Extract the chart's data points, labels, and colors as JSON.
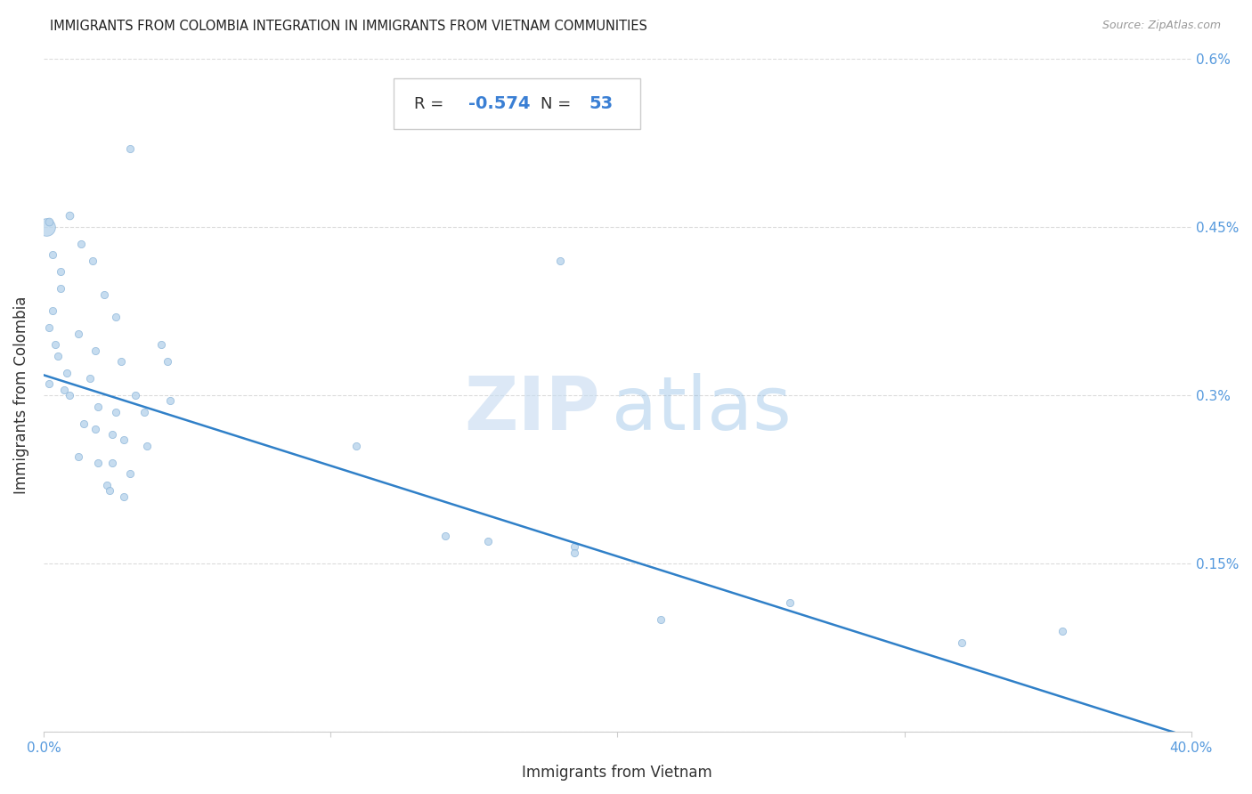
{
  "title": "IMMIGRANTS FROM COLOMBIA INTEGRATION IN IMMIGRANTS FROM VIETNAM COMMUNITIES",
  "source": "Source: ZipAtlas.com",
  "xlabel": "Immigrants from Vietnam",
  "ylabel": "Immigrants from Colombia",
  "R": -0.574,
  "N": 53,
  "xlim": [
    0.0,
    0.4
  ],
  "ylim": [
    0.0,
    0.6
  ],
  "xticks": [
    0.0,
    0.1,
    0.2,
    0.3,
    0.4
  ],
  "xtick_labels": [
    "0.0%",
    "",
    "",
    "",
    "40.0%"
  ],
  "yticks": [
    0.0,
    0.15,
    0.3,
    0.45,
    0.6
  ],
  "right_ytick_labels": [
    "",
    "0.15%",
    "0.3%",
    "0.45%",
    "0.6%"
  ],
  "scatter_color": "#b8d4ec",
  "scatter_edge_color": "#8ab4d8",
  "line_color": "#3080c8",
  "line_start_x": 0.0,
  "line_start_y": 0.318,
  "line_end_x": 0.4,
  "line_end_y": -0.005,
  "watermark_zip_color": "#c5daf0",
  "watermark_atlas_color": "#7ab0e0",
  "title_color": "#222222",
  "source_color": "#999999",
  "axis_label_color": "#333333",
  "tick_label_color": "#5599dd",
  "grid_color": "#cccccc",
  "stats_box_R_label_color": "#333333",
  "stats_box_R_value_color": "#3a7fd4",
  "stats_box_N_label_color": "#333333",
  "stats_box_N_value_color": "#3a7fd4",
  "points": [
    [
      0.001,
      0.505
    ],
    [
      0.009,
      0.46
    ],
    [
      0.001,
      0.455
    ],
    [
      0.013,
      0.435
    ],
    [
      0.003,
      0.425
    ],
    [
      0.017,
      0.42
    ],
    [
      0.006,
      0.41
    ],
    [
      0.006,
      0.395
    ],
    [
      0.021,
      0.39
    ],
    [
      0.003,
      0.375
    ],
    [
      0.025,
      0.37
    ],
    [
      0.002,
      0.36
    ],
    [
      0.012,
      0.355
    ],
    [
      0.004,
      0.345
    ],
    [
      0.041,
      0.345
    ],
    [
      0.018,
      0.34
    ],
    [
      0.005,
      0.335
    ],
    [
      0.027,
      0.33
    ],
    [
      0.043,
      0.33
    ],
    [
      0.008,
      0.32
    ],
    [
      0.016,
      0.315
    ],
    [
      0.002,
      0.31
    ],
    [
      0.032,
      0.3
    ],
    [
      0.044,
      0.295
    ],
    [
      0.019,
      0.29
    ],
    [
      0.025,
      0.285
    ],
    [
      0.035,
      0.285
    ],
    [
      0.0,
      0.32
    ],
    [
      0.003,
      0.315
    ],
    [
      0.007,
      0.31
    ],
    [
      0.009,
      0.305
    ],
    [
      0.014,
      0.275
    ],
    [
      0.018,
      0.27
    ],
    [
      0.024,
      0.265
    ],
    [
      0.028,
      0.26
    ],
    [
      0.036,
      0.255
    ],
    [
      0.109,
      0.255
    ],
    [
      0.012,
      0.245
    ],
    [
      0.019,
      0.24
    ],
    [
      0.024,
      0.24
    ],
    [
      0.03,
      0.23
    ],
    [
      0.022,
      0.22
    ],
    [
      0.023,
      0.215
    ],
    [
      0.028,
      0.21
    ],
    [
      0.185,
      0.165
    ],
    [
      0.14,
      0.175
    ],
    [
      0.155,
      0.17
    ],
    [
      0.185,
      0.16
    ],
    [
      0.215,
      0.1
    ],
    [
      0.26,
      0.115
    ],
    [
      0.32,
      0.08
    ],
    [
      0.355,
      0.09
    ],
    [
      0.2,
      0.42
    ]
  ],
  "point_sizes": [
    35,
    35,
    35,
    35,
    35,
    35,
    35,
    35,
    35,
    35,
    35,
    35,
    35,
    35,
    35,
    35,
    35,
    35,
    35,
    35,
    35,
    35,
    35,
    35,
    35,
    35,
    35,
    35,
    35,
    35,
    35,
    35,
    35,
    35,
    35,
    35,
    35,
    35,
    35,
    35,
    35,
    35,
    35,
    35,
    35,
    35,
    35,
    35,
    35,
    35,
    35,
    35,
    200
  ]
}
